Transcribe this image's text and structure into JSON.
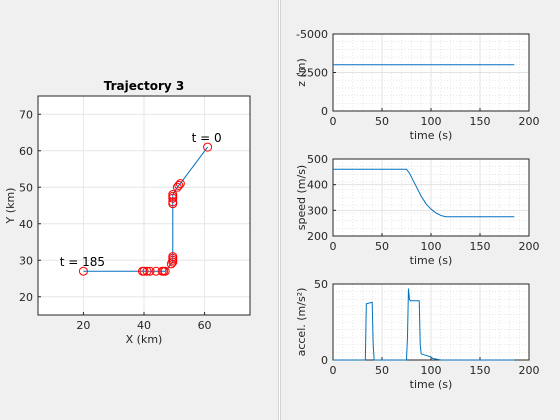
{
  "chart_data": [
    {
      "type": "scatter",
      "title": "Trajectory 3",
      "xlabel": "X (km)",
      "ylabel": "Y (km)",
      "xlim": [
        5,
        75
      ],
      "ylim": [
        15,
        75
      ],
      "xticks": [
        "20",
        "40",
        "60"
      ],
      "yticks": [
        "20",
        "30",
        "40",
        "50",
        "60",
        "70"
      ],
      "grid": true,
      "line_color": "#0072bd",
      "marker_color": "#ff0000",
      "path": [
        [
          61,
          61
        ],
        [
          52,
          51
        ],
        [
          51,
          50
        ],
        [
          49.5,
          48
        ],
        [
          49.5,
          47.5
        ],
        [
          49.5,
          46
        ],
        [
          49.5,
          45.5
        ],
        [
          49.5,
          31
        ],
        [
          49.5,
          30.5
        ],
        [
          49.5,
          30
        ],
        [
          49.5,
          29.5
        ],
        [
          49,
          29
        ],
        [
          48,
          28
        ],
        [
          47,
          27
        ],
        [
          46.5,
          27
        ],
        [
          46,
          27
        ],
        [
          44,
          27
        ],
        [
          42,
          27
        ],
        [
          41,
          27
        ],
        [
          40,
          27
        ],
        [
          39.5,
          27
        ],
        [
          20,
          27
        ]
      ],
      "markers": [
        [
          61,
          61
        ],
        [
          52,
          51
        ],
        [
          51.5,
          50.5
        ],
        [
          51,
          50
        ],
        [
          49.5,
          48
        ],
        [
          49.5,
          47.5
        ],
        [
          49.5,
          47
        ],
        [
          49.5,
          46
        ],
        [
          49.5,
          45.5
        ],
        [
          49.5,
          31
        ],
        [
          49.5,
          30.5
        ],
        [
          49.5,
          30
        ],
        [
          49.5,
          29.5
        ],
        [
          49,
          29
        ],
        [
          47,
          27
        ],
        [
          46.5,
          27
        ],
        [
          46,
          27
        ],
        [
          44,
          27
        ],
        [
          42,
          27
        ],
        [
          41,
          27
        ],
        [
          40,
          27
        ],
        [
          39.5,
          27
        ],
        [
          20,
          27
        ]
      ],
      "annotations": [
        {
          "label": "t = 0",
          "x": 61,
          "y": 61
        },
        {
          "label": "t = 185",
          "x": 20,
          "y": 27
        }
      ]
    },
    {
      "type": "line",
      "xlabel": "time (s)",
      "ylabel": "z (m)",
      "xlim": [
        0,
        200
      ],
      "ylim": [
        -5000,
        0
      ],
      "reversed_y": true,
      "xticks": [
        "0",
        "50",
        "100",
        "150",
        "200"
      ],
      "yticks": [
        "-5000",
        "-2500",
        "0"
      ],
      "grid": true,
      "line_color": "#0072bd",
      "x": [
        0,
        185
      ],
      "y": [
        -3000,
        -3000
      ]
    },
    {
      "type": "line",
      "xlabel": "time (s)",
      "ylabel": "speed (m/s)",
      "xlim": [
        0,
        200
      ],
      "ylim": [
        200,
        500
      ],
      "xticks": [
        "0",
        "50",
        "100",
        "150",
        "200"
      ],
      "yticks": [
        "200",
        "300",
        "400",
        "500"
      ],
      "grid": true,
      "line_color": "#0072bd",
      "x": [
        0,
        75,
        78,
        82,
        86,
        90,
        95,
        100,
        105,
        110,
        115,
        185
      ],
      "y": [
        460,
        460,
        445,
        415,
        385,
        355,
        325,
        305,
        290,
        280,
        275,
        275
      ]
    },
    {
      "type": "line",
      "xlabel": "time (s)",
      "ylabel": "accel. (m/s²)",
      "xlim": [
        0,
        200
      ],
      "ylim": [
        0,
        50
      ],
      "xticks": [
        "0",
        "50",
        "100",
        "150",
        "200"
      ],
      "yticks": [
        "0",
        "50"
      ],
      "grid": true,
      "line_color": "#0072bd",
      "x": [
        0,
        33,
        34,
        40,
        41,
        42,
        75,
        76,
        77,
        78,
        79,
        88,
        89,
        90,
        95,
        100,
        102,
        110,
        185
      ],
      "y": [
        0,
        0,
        37,
        38,
        10,
        0,
        0,
        15,
        47,
        40,
        39,
        39,
        10,
        4,
        3,
        2,
        1,
        0,
        0
      ]
    }
  ]
}
